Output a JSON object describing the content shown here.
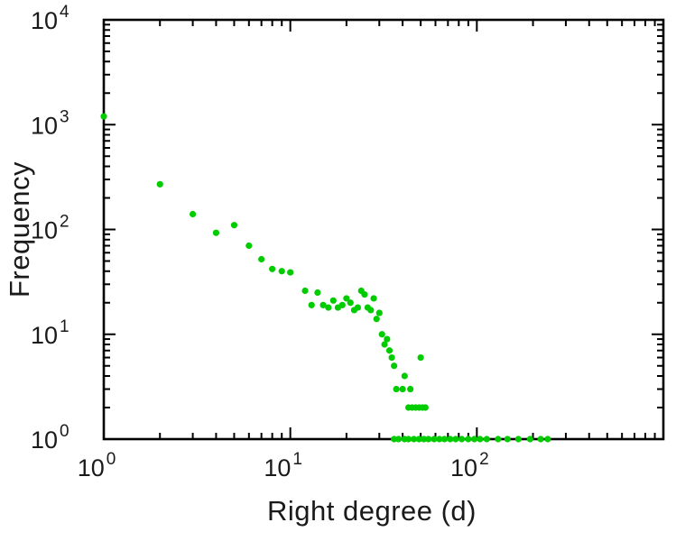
{
  "styles": {
    "axis_color": "#000000",
    "label_color": "#1a1a1a",
    "background": "#ffffff",
    "point_color": "#00cc00"
  },
  "chart_data": {
    "type": "scatter",
    "title": "",
    "xlabel": "Right degree (d)",
    "ylabel": "Frequency",
    "x_scale": "log",
    "y_scale": "log",
    "x_range": [
      1,
      1000
    ],
    "y_range": [
      1,
      10000
    ],
    "x_tick_exponents": [
      0,
      1,
      2
    ],
    "y_tick_exponents": [
      0,
      1,
      2,
      3,
      4
    ],
    "tick_base": "10",
    "grid": false,
    "legend": null,
    "marker": {
      "shape": "circle",
      "color": "#00cc00",
      "radius": 3.6
    },
    "points": [
      [
        1,
        1200
      ],
      [
        2,
        270
      ],
      [
        3,
        140
      ],
      [
        4,
        93
      ],
      [
        5,
        110
      ],
      [
        6,
        70
      ],
      [
        7,
        52
      ],
      [
        8,
        42
      ],
      [
        9,
        40
      ],
      [
        10,
        39
      ],
      [
        12,
        26
      ],
      [
        13,
        19
      ],
      [
        14,
        25
      ],
      [
        15,
        19
      ],
      [
        16,
        18
      ],
      [
        17,
        21
      ],
      [
        18,
        18
      ],
      [
        19,
        19
      ],
      [
        20,
        22
      ],
      [
        21,
        20
      ],
      [
        22,
        17
      ],
      [
        23,
        18
      ],
      [
        24,
        26
      ],
      [
        25,
        24
      ],
      [
        26,
        18
      ],
      [
        27,
        17
      ],
      [
        28,
        22
      ],
      [
        29,
        14
      ],
      [
        30,
        16
      ],
      [
        31,
        10
      ],
      [
        32,
        8
      ],
      [
        33,
        9
      ],
      [
        34,
        7
      ],
      [
        35,
        6
      ],
      [
        36,
        5
      ],
      [
        37,
        3
      ],
      [
        40,
        3
      ],
      [
        41,
        4
      ],
      [
        44,
        3
      ],
      [
        43,
        2
      ],
      [
        45,
        2
      ],
      [
        47,
        2
      ],
      [
        49,
        2
      ],
      [
        51,
        2
      ],
      [
        53,
        2
      ],
      [
        50,
        6
      ],
      [
        36,
        1
      ],
      [
        38,
        1
      ],
      [
        41,
        1
      ],
      [
        43,
        1
      ],
      [
        46,
        1
      ],
      [
        49,
        1
      ],
      [
        52,
        1
      ],
      [
        55,
        1
      ],
      [
        59,
        1
      ],
      [
        63,
        1
      ],
      [
        67,
        1
      ],
      [
        72,
        1
      ],
      [
        77,
        1
      ],
      [
        83,
        1
      ],
      [
        90,
        1
      ],
      [
        97,
        1
      ],
      [
        104,
        1
      ],
      [
        113,
        1
      ],
      [
        130,
        1
      ],
      [
        146,
        1
      ],
      [
        167,
        1
      ],
      [
        193,
        1
      ],
      [
        220,
        1
      ],
      [
        240,
        1
      ]
    ]
  }
}
